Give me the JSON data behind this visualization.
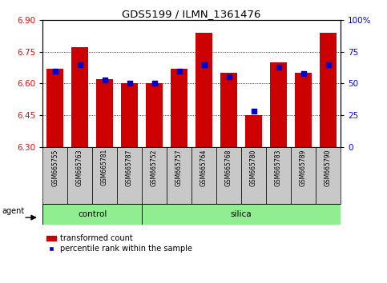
{
  "title": "GDS5199 / ILMN_1361476",
  "samples": [
    "GSM665755",
    "GSM665763",
    "GSM665781",
    "GSM665787",
    "GSM665752",
    "GSM665757",
    "GSM665764",
    "GSM665768",
    "GSM665780",
    "GSM665783",
    "GSM665789",
    "GSM665790"
  ],
  "groups": [
    "control",
    "control",
    "control",
    "control",
    "silica",
    "silica",
    "silica",
    "silica",
    "silica",
    "silica",
    "silica",
    "silica"
  ],
  "transformed_counts": [
    6.67,
    6.77,
    6.62,
    6.6,
    6.6,
    6.67,
    6.84,
    6.65,
    6.45,
    6.7,
    6.65,
    6.84
  ],
  "percentile_ranks": [
    60,
    65,
    53,
    50,
    50,
    60,
    65,
    55,
    28,
    63,
    58,
    65
  ],
  "y_min": 6.3,
  "y_max": 6.9,
  "y_ticks": [
    6.3,
    6.45,
    6.6,
    6.75,
    6.9
  ],
  "y2_ticks": [
    0,
    25,
    50,
    75,
    100
  ],
  "bar_color": "#cc0000",
  "dot_color": "#0000cc",
  "label_bg": "#c8c8c8",
  "control_color": "#90ee90",
  "silica_color": "#90ee90",
  "agent_label": "agent",
  "legend_bar": "transformed count",
  "legend_dot": "percentile rank within the sample",
  "bar_width": 0.7,
  "n_control": 4,
  "n_silica": 8
}
